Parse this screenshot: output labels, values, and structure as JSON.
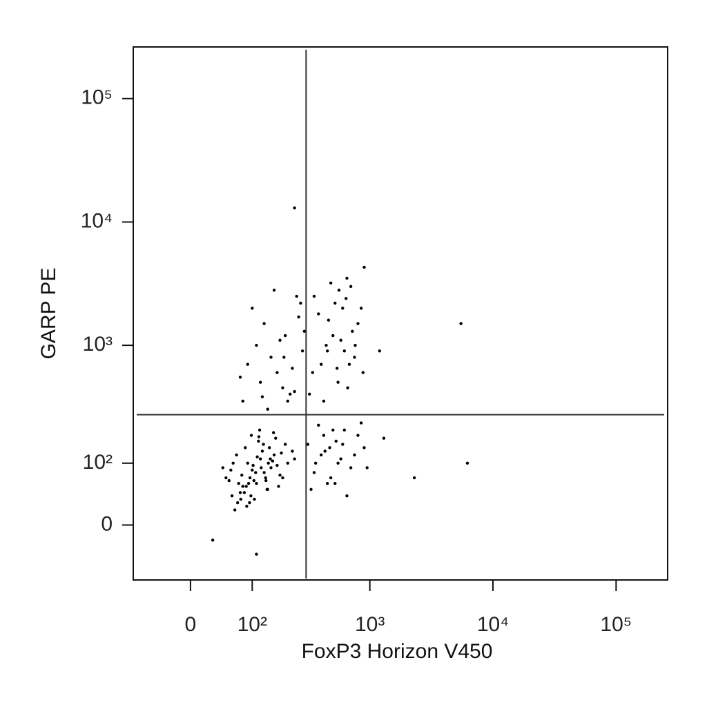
{
  "chart_data": {
    "type": "scatter",
    "x_label": "FoxP3 Horizon V450",
    "y_label": "GARP PE",
    "scale": "biexponential",
    "color": "#000000",
    "xlim": [
      -90,
      262144
    ],
    "ylim": [
      -85,
      262144
    ],
    "xticks": [
      0,
      {
        "value": 100,
        "label": "10²"
      },
      {
        "value": 1000,
        "label": "10³"
      },
      {
        "value": 10000,
        "label": "10⁴"
      },
      {
        "value": 100000,
        "label": "10⁵"
      }
    ],
    "yticks": [
      0,
      {
        "value": 100,
        "label": "10²"
      },
      {
        "value": 1000,
        "label": "10³"
      },
      {
        "value": 10000,
        "label": "10⁴"
      },
      {
        "value": 100000,
        "label": "10⁵"
      }
    ],
    "quadrant_gate": {
      "x": 300,
      "y": 270
    },
    "x": [
      60,
      80,
      95,
      110,
      130,
      150,
      70,
      90,
      120,
      140,
      160,
      180,
      55,
      75,
      100,
      125,
      170,
      200,
      65,
      85,
      105,
      115,
      135,
      155,
      190,
      45,
      88,
      98,
      112,
      145,
      175,
      210,
      68,
      78,
      92,
      102,
      118,
      138,
      165,
      230,
      58,
      83,
      108,
      128,
      148,
      72,
      94,
      116,
      134,
      185,
      62,
      87,
      97,
      122,
      158,
      240,
      50,
      76,
      104,
      142,
      80,
      120,
      150,
      200,
      250,
      100,
      170,
      220,
      280,
      130,
      90,
      190,
      260,
      140,
      230,
      110,
      160,
      210,
      75,
      180,
      240,
      270,
      125,
      195,
      290,
      320,
      400,
      500,
      600,
      700,
      800,
      350,
      450,
      550,
      650,
      750,
      880,
      380,
      480,
      580,
      680,
      420,
      520,
      620,
      720,
      340,
      460,
      560,
      660,
      760,
      850,
      900,
      440,
      540,
      640,
      310,
      350,
      400,
      450,
      500,
      550,
      600,
      700,
      800,
      900,
      330,
      380,
      430,
      480,
      530,
      580,
      650,
      750,
      850,
      950,
      420,
      520,
      620,
      360,
      470,
      240,
      5500,
      6200,
      2300,
      1200,
      1300,
      30,
      110
    ],
    "values": [
      40,
      55,
      70,
      60,
      80,
      90,
      30,
      100,
      110,
      50,
      120,
      75,
      65,
      45,
      85,
      130,
      95,
      150,
      20,
      140,
      35,
      160,
      65,
      105,
      70,
      90,
      25,
      180,
      115,
      140,
      55,
      100,
      120,
      75,
      60,
      95,
      200,
      50,
      170,
      130,
      85,
      45,
      80,
      150,
      110,
      60,
      30,
      175,
      70,
      125,
      100,
      55,
      40,
      90,
      190,
      110,
      70,
      35,
      65,
      100,
      350,
      500,
      800,
      1200,
      2500,
      2000,
      600,
      400,
      900,
      1500,
      700,
      450,
      1700,
      300,
      650,
      1000,
      2800,
      350,
      550,
      1100,
      420,
      2200,
      380,
      800,
      1300,
      400,
      700,
      1200,
      2000,
      3000,
      1500,
      2500,
      900,
      500,
      3500,
      800,
      600,
      1800,
      3200,
      1100,
      700,
      350,
      2200,
      900,
      1300,
      600,
      1600,
      2800,
      450,
      1000,
      2000,
      4300,
      1000,
      650,
      2400,
      150,
      80,
      120,
      60,
      200,
      100,
      150,
      90,
      180,
      140,
      50,
      220,
      130,
      70,
      160,
      110,
      40,
      120,
      230,
      90,
      180,
      60,
      200,
      100,
      140,
      13000,
      1500,
      100,
      70,
      900,
      170,
      -20,
      -40
    ]
  }
}
